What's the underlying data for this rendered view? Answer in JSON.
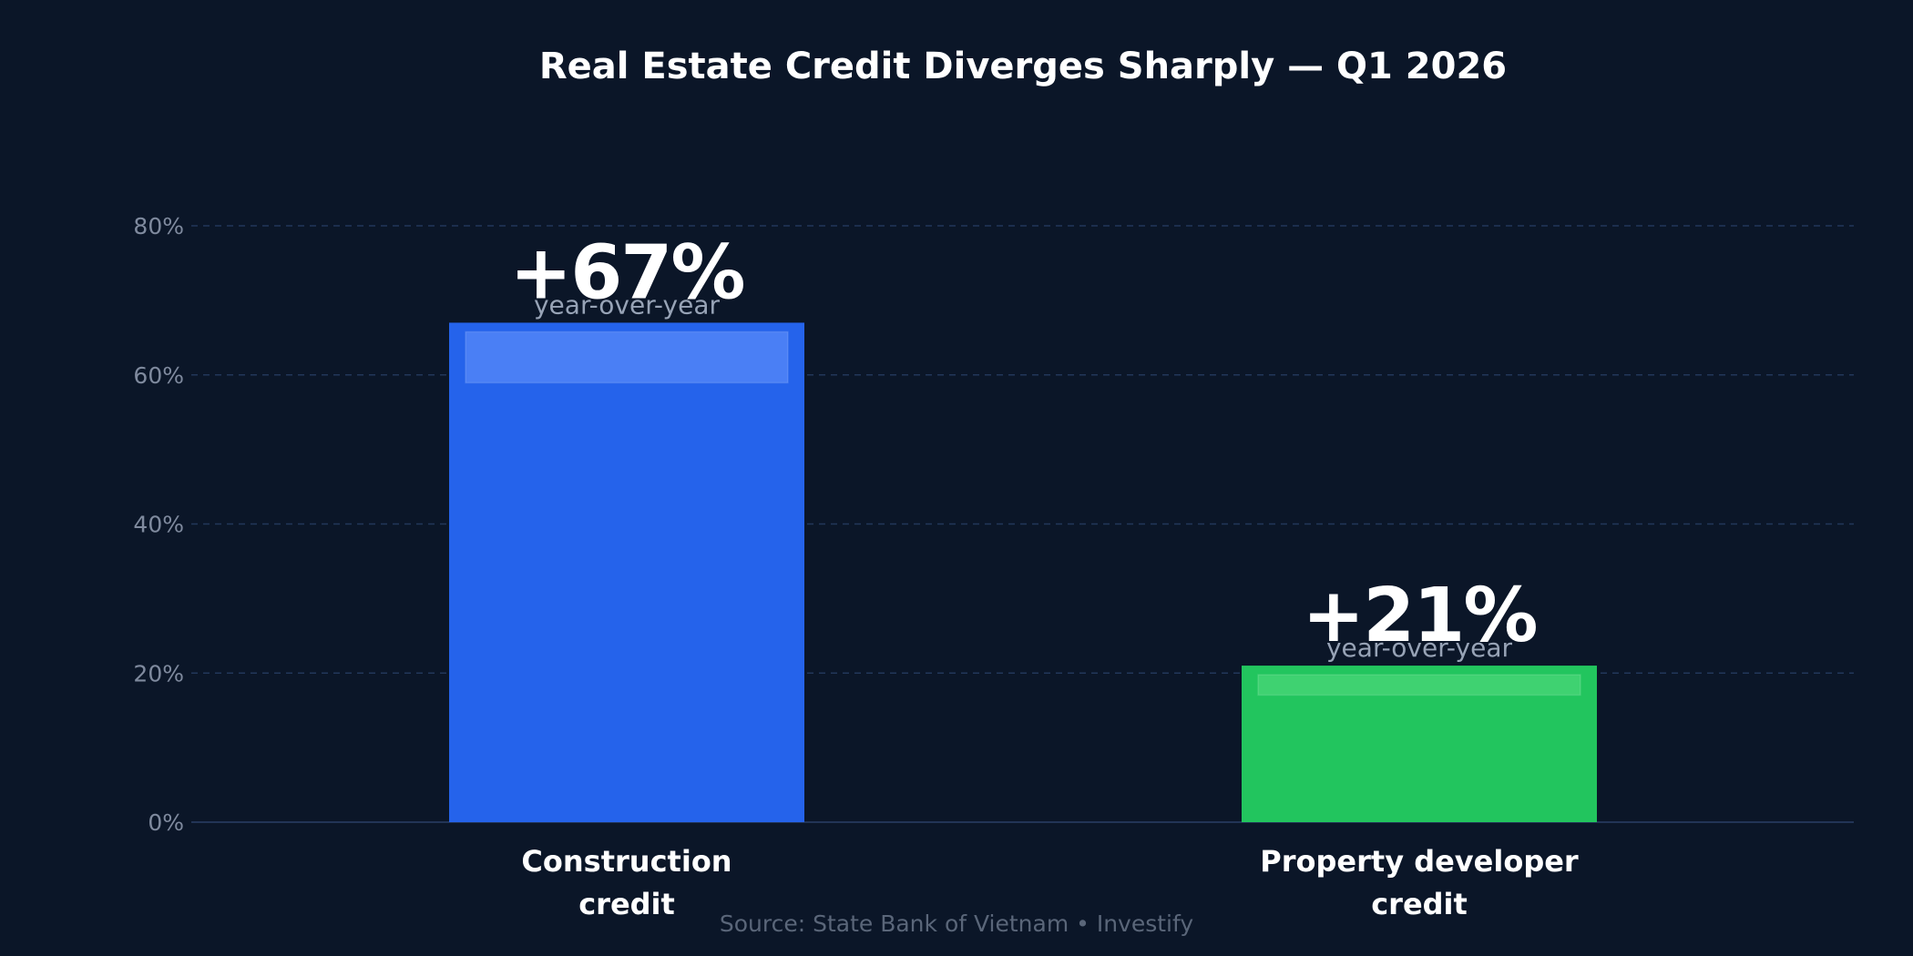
{
  "chart_data": {
    "type": "bar",
    "title": "Real Estate Credit Diverges Sharply — Q1 2026",
    "categories": [
      [
        "Construction",
        "credit"
      ],
      [
        "Property developer",
        "credit"
      ]
    ],
    "values": [
      67,
      21
    ],
    "value_labels": [
      "+67%",
      "+21%"
    ],
    "value_sublabel": "year-over-year",
    "bar_colors": [
      "#2563eb",
      "#22c55e"
    ],
    "highlight_colors": [
      "#4a7ff5",
      "#3fd271"
    ],
    "ylim": [
      0,
      80
    ],
    "yticks": [
      0,
      20,
      40,
      60,
      80
    ],
    "ytick_labels": [
      "0%",
      "20%",
      "40%",
      "60%",
      "80%"
    ],
    "grid": true,
    "legend": "none",
    "xlabel": "",
    "ylabel": "",
    "source": "Source: State Bank of Vietnam  •  Investify"
  },
  "colors": {
    "background": "#0b1628"
  }
}
